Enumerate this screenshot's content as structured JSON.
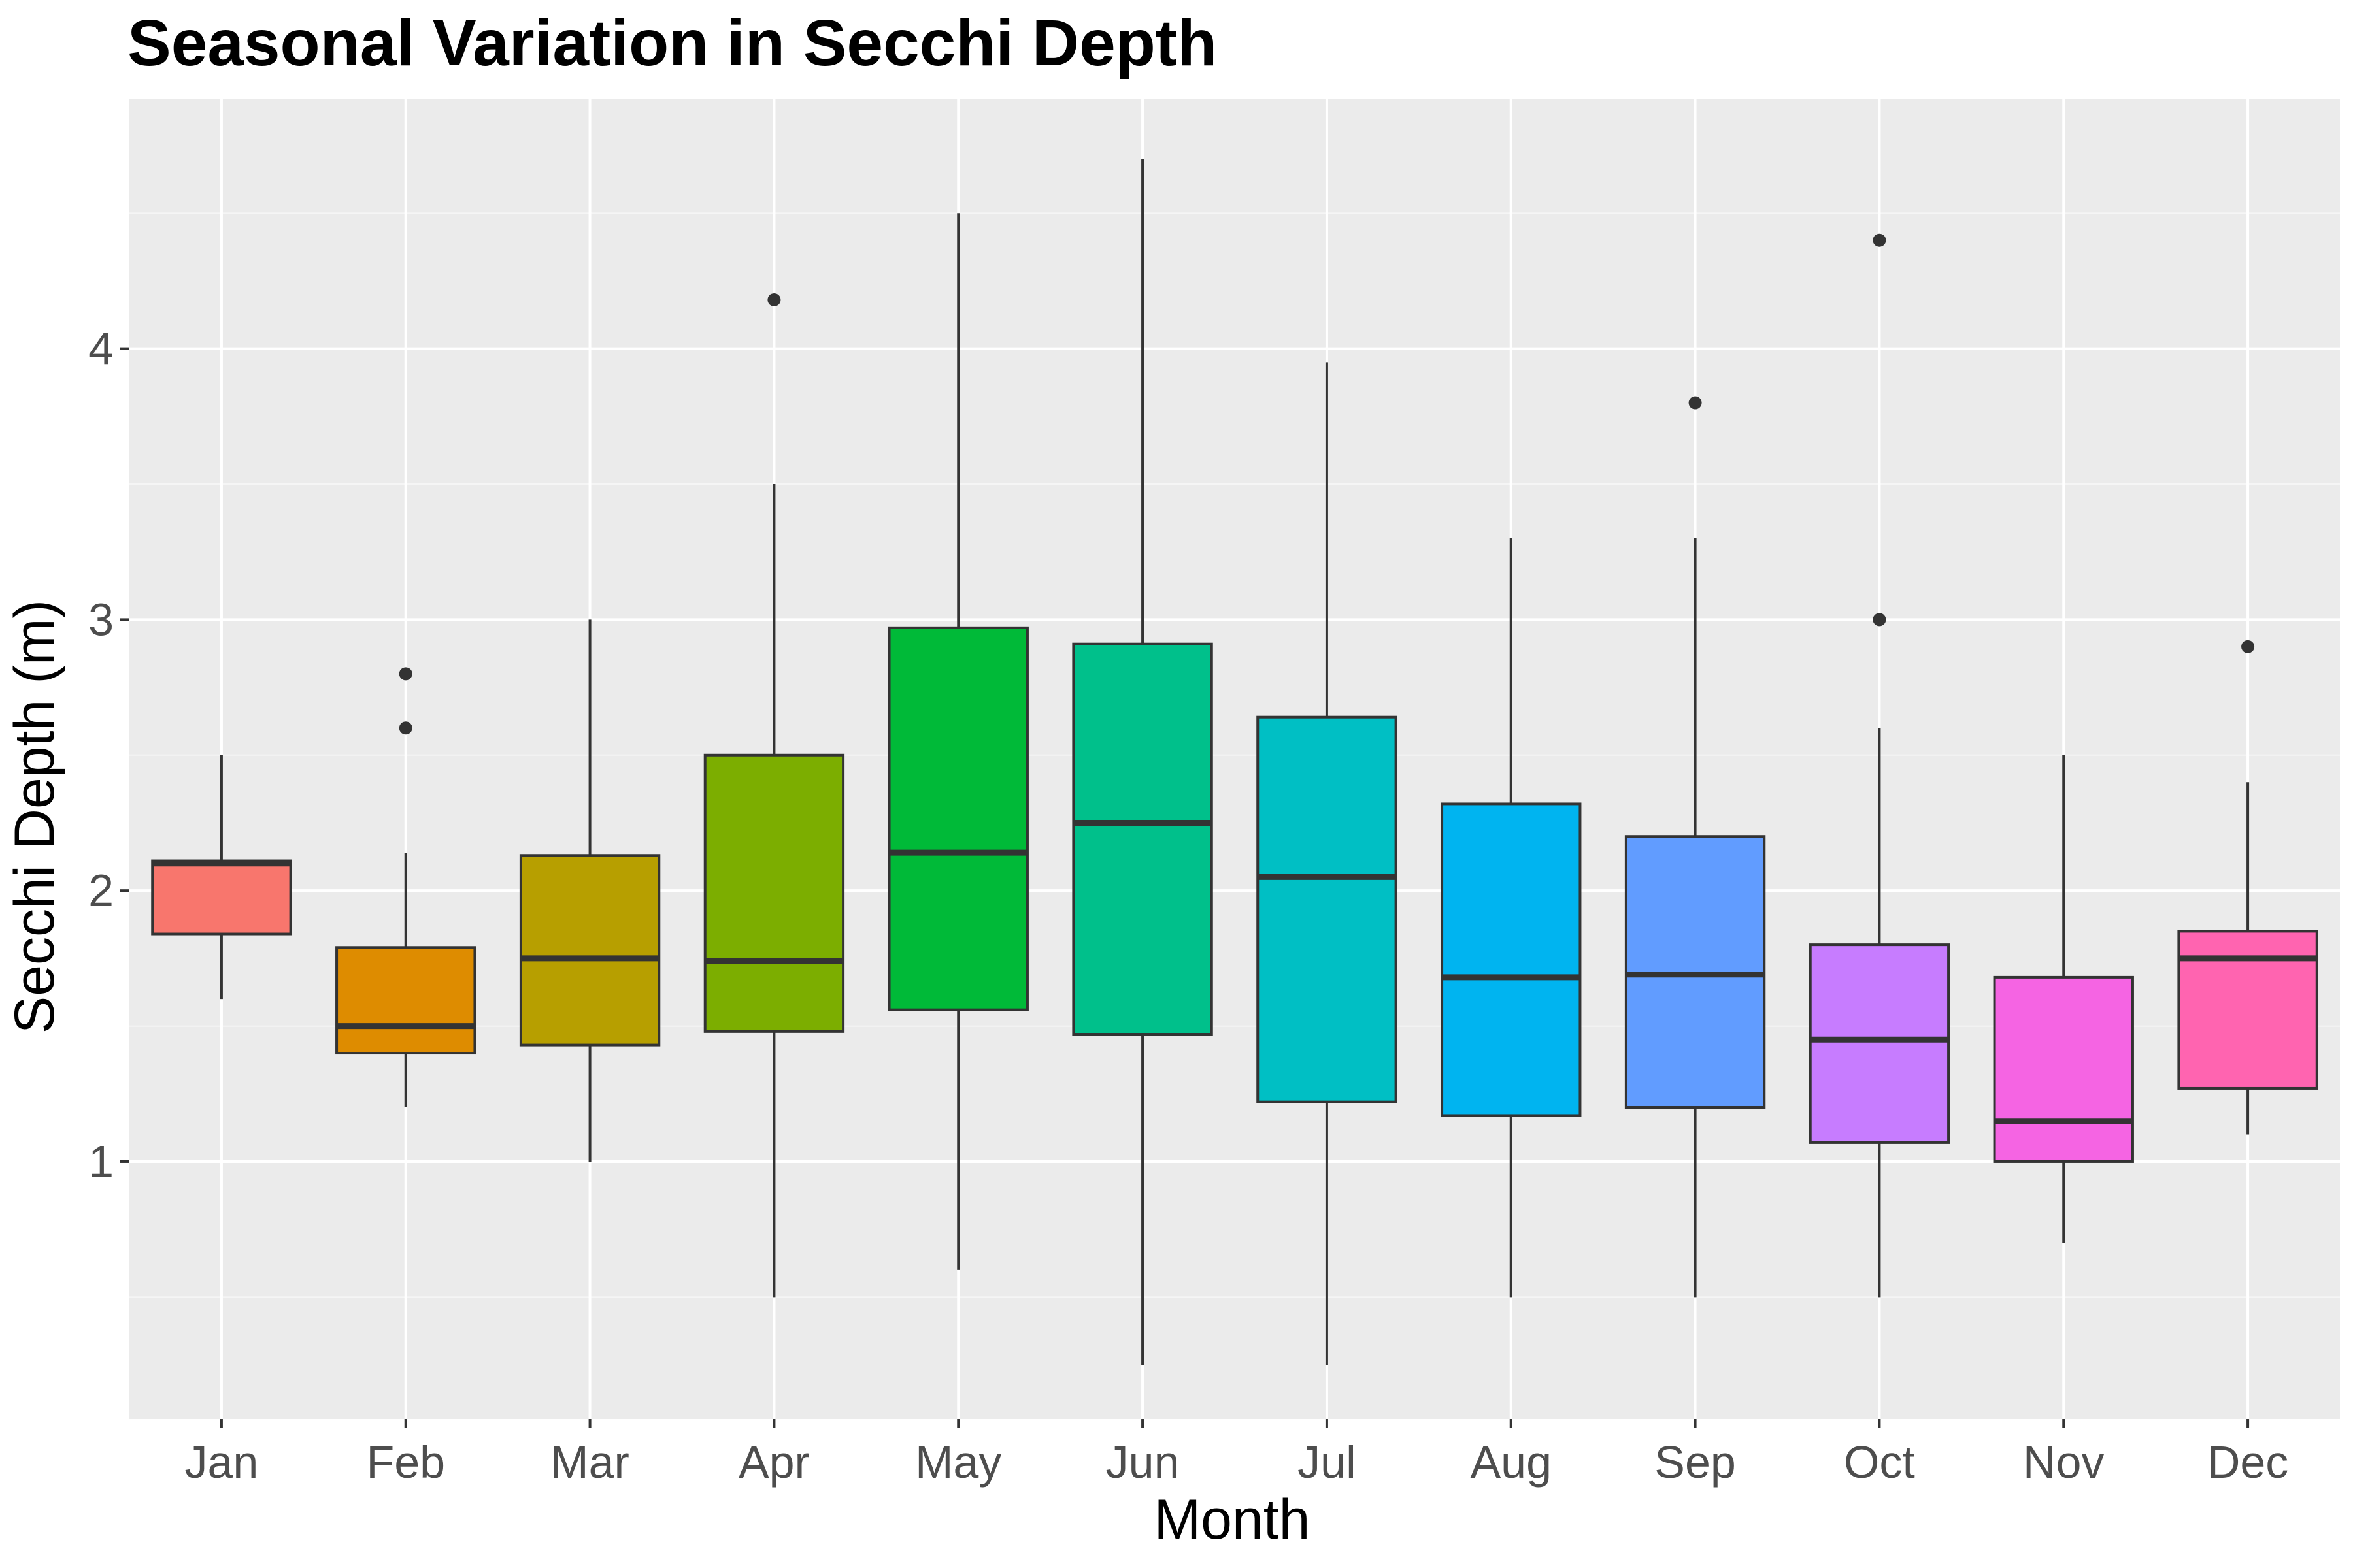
{
  "chart_data": {
    "type": "boxplot",
    "title": "Seasonal Variation in Secchi Depth",
    "xlabel": "Month",
    "ylabel": "Secchi Depth (m)",
    "categories": [
      "Jan",
      "Feb",
      "Mar",
      "Apr",
      "May",
      "Jun",
      "Jul",
      "Aug",
      "Sep",
      "Oct",
      "Nov",
      "Dec"
    ],
    "ylim": [
      0.05,
      4.92
    ],
    "y_ticks": [
      1,
      2,
      3,
      4
    ],
    "y_tick_labels": [
      "1",
      "2",
      "3",
      "4"
    ],
    "grid": true,
    "legend": "none",
    "boxes": [
      {
        "month": "Jan",
        "whisker_low": 1.6,
        "q1": 1.84,
        "median": 2.1,
        "q3": 2.11,
        "whisker_high": 2.5,
        "outliers": [],
        "color": "#F8766D"
      },
      {
        "month": "Feb",
        "whisker_low": 1.2,
        "q1": 1.4,
        "median": 1.5,
        "q3": 1.79,
        "whisker_high": 2.14,
        "outliers": [
          2.6,
          2.8
        ],
        "color": "#DE8C00"
      },
      {
        "month": "Mar",
        "whisker_low": 1.0,
        "q1": 1.43,
        "median": 1.75,
        "q3": 2.13,
        "whisker_high": 3.0,
        "outliers": [],
        "color": "#B79F00"
      },
      {
        "month": "Apr",
        "whisker_low": 0.5,
        "q1": 1.48,
        "median": 1.74,
        "q3": 2.5,
        "whisker_high": 3.5,
        "outliers": [
          4.18
        ],
        "color": "#7CAE00"
      },
      {
        "month": "May",
        "whisker_low": 0.6,
        "q1": 1.56,
        "median": 2.14,
        "q3": 2.97,
        "whisker_high": 4.5,
        "outliers": [],
        "color": "#00BA38"
      },
      {
        "month": "Jun",
        "whisker_low": 0.25,
        "q1": 1.47,
        "median": 2.25,
        "q3": 2.91,
        "whisker_high": 4.7,
        "outliers": [],
        "color": "#00C08B"
      },
      {
        "month": "Jul",
        "whisker_low": 0.25,
        "q1": 1.22,
        "median": 2.05,
        "q3": 2.64,
        "whisker_high": 3.95,
        "outliers": [],
        "color": "#00BFC4"
      },
      {
        "month": "Aug",
        "whisker_low": 0.5,
        "q1": 1.17,
        "median": 1.68,
        "q3": 2.32,
        "whisker_high": 3.3,
        "outliers": [],
        "color": "#00B4F0"
      },
      {
        "month": "Sep",
        "whisker_low": 0.5,
        "q1": 1.2,
        "median": 1.69,
        "q3": 2.2,
        "whisker_high": 3.3,
        "outliers": [
          3.8
        ],
        "color": "#619CFF"
      },
      {
        "month": "Oct",
        "whisker_low": 0.5,
        "q1": 1.07,
        "median": 1.45,
        "q3": 1.8,
        "whisker_high": 2.6,
        "outliers": [
          3.0,
          4.4
        ],
        "color": "#C77CFF"
      },
      {
        "month": "Nov",
        "whisker_low": 0.7,
        "q1": 1.0,
        "median": 1.15,
        "q3": 1.68,
        "whisker_high": 2.5,
        "outliers": [],
        "color": "#F564E3"
      },
      {
        "month": "Dec",
        "whisker_low": 1.1,
        "q1": 1.27,
        "median": 1.75,
        "q3": 1.85,
        "whisker_high": 2.4,
        "outliers": [
          2.9
        ],
        "color": "#FF64B0"
      }
    ],
    "colors": {
      "panel_background": "#EBEBEB",
      "grid_major": "#FFFFFF",
      "grid_minor": "#F5F5F5",
      "box_outline": "#333333"
    }
  }
}
